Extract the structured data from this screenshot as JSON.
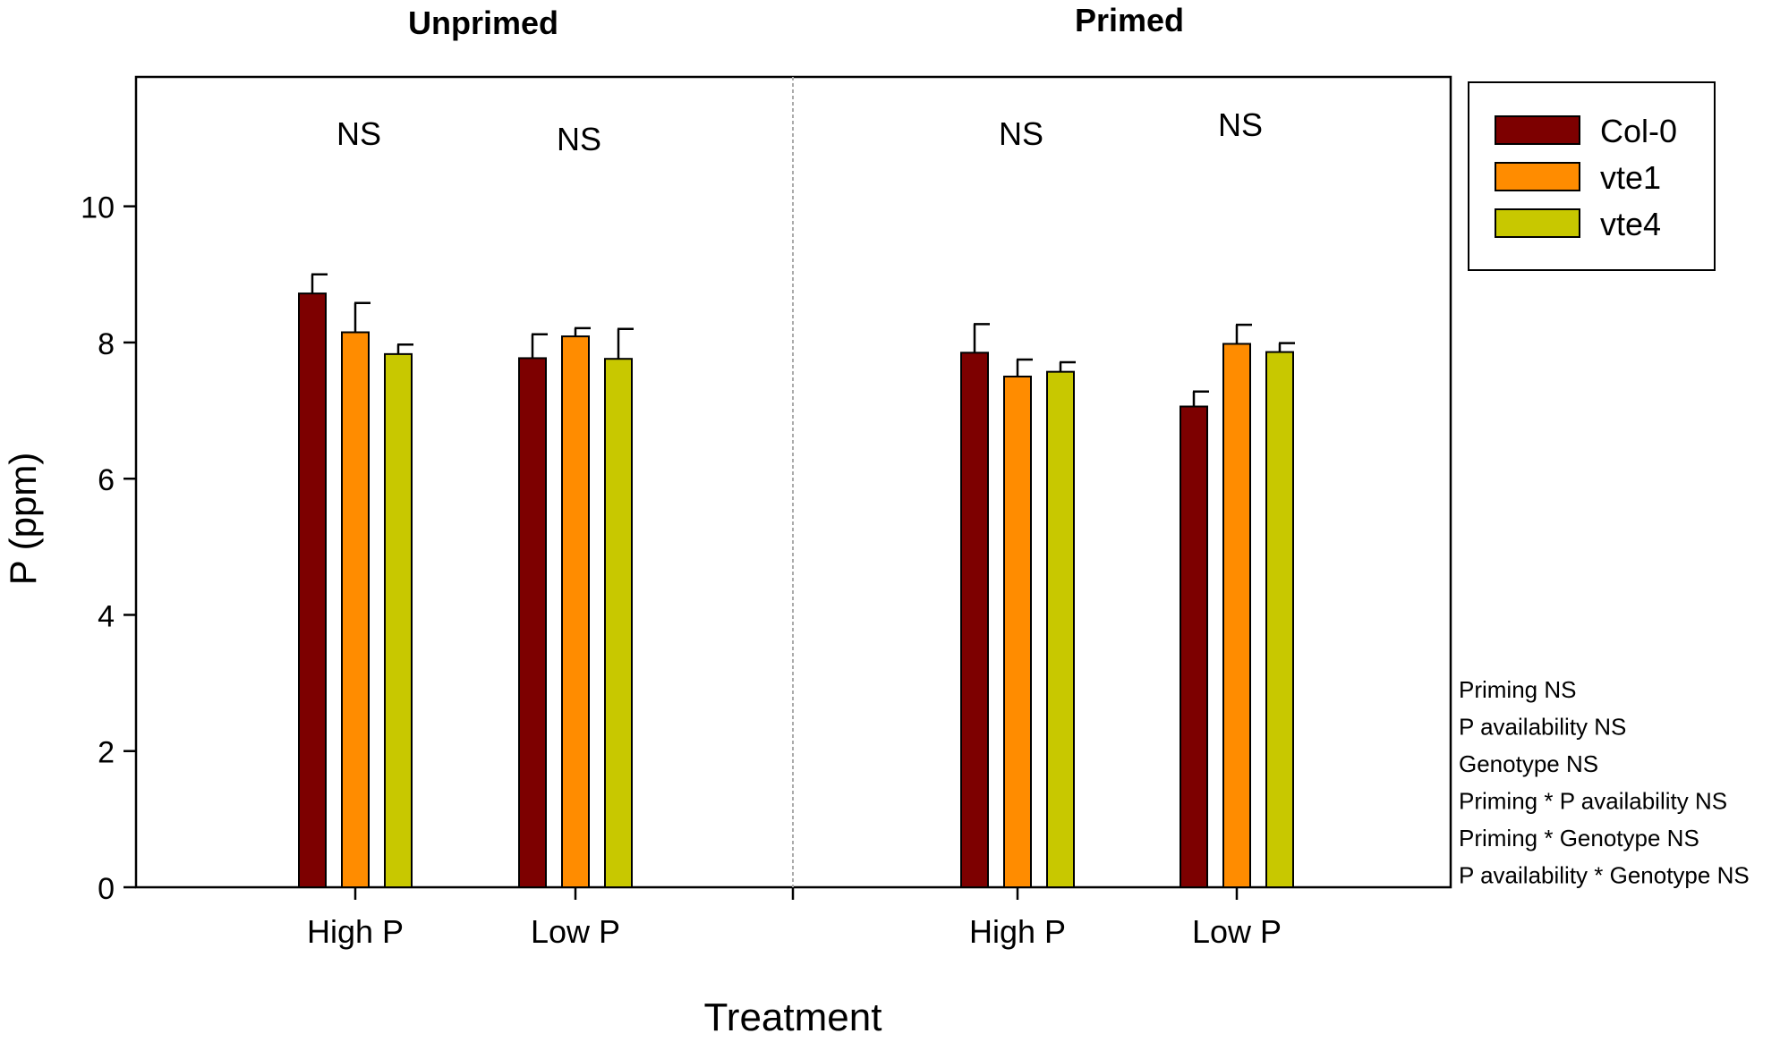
{
  "chart_data": {
    "type": "bar",
    "title": "",
    "xlabel": "Treatment",
    "ylabel": "P (ppm)",
    "ylim": [
      0,
      11.9
    ],
    "yticks": [
      0,
      2,
      4,
      6,
      8,
      10
    ],
    "panels": [
      "Unprimed",
      "Primed"
    ],
    "groups": [
      {
        "panel": "Unprimed",
        "label": "High P",
        "annotation": "NS"
      },
      {
        "panel": "Unprimed",
        "label": "Low P",
        "annotation": "NS"
      },
      {
        "panel": "Primed",
        "label": "High P",
        "annotation": "NS"
      },
      {
        "panel": "Primed",
        "label": "Low P",
        "annotation": "NS"
      }
    ],
    "series": [
      {
        "name": "Col-0",
        "color": "#7d0000",
        "values": [
          8.72,
          7.77,
          7.85,
          7.06
        ],
        "errors": [
          0.28,
          0.35,
          0.42,
          0.22
        ]
      },
      {
        "name": "vte1",
        "color": "#ff8c00",
        "values": [
          8.15,
          8.09,
          7.5,
          7.98
        ],
        "errors": [
          0.43,
          0.12,
          0.25,
          0.28
        ]
      },
      {
        "name": "vte4",
        "color": "#c8c800",
        "values": [
          7.83,
          7.76,
          7.57,
          7.86
        ],
        "errors": [
          0.14,
          0.44,
          0.14,
          0.13
        ]
      }
    ],
    "legend": {
      "position": "top-right"
    },
    "stats": [
      "Priming NS",
      "P availability NS",
      "Genotype NS",
      "Priming * P availability NS",
      "Priming * Genotype NS",
      "P availability * Genotype NS"
    ]
  }
}
